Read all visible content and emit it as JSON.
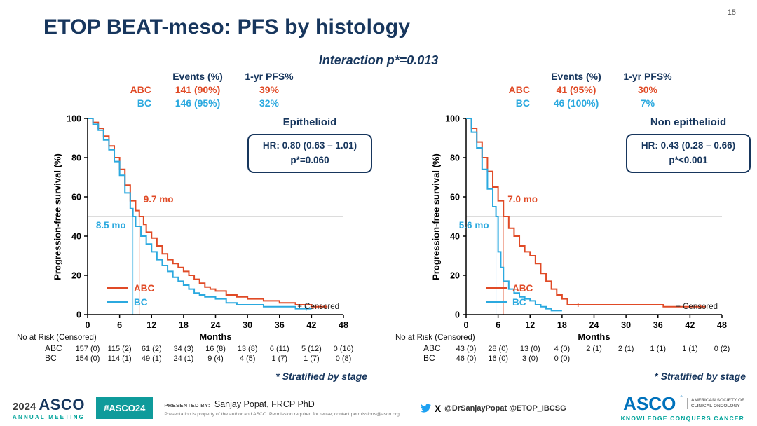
{
  "slide": {
    "title": "ETOP BEAT-meso: PFS by histology",
    "subtitle": "Interaction p*=0.013",
    "page_number": "15"
  },
  "colors": {
    "abc": "#e04a26",
    "bc": "#2ba9df",
    "navy": "#17365d",
    "teal": "#00a39a"
  },
  "charts": [
    {
      "histology_label": "Epithelioid",
      "hr_line1": "HR: 0.80 (0.63 – 1.01)",
      "hr_line2": "p*=0.060",
      "ylabel": "Progression-free survival (%)",
      "censored_note": "+ Censored",
      "stratified_note": "* Stratified by stage",
      "stats": {
        "col1": "Events (%)",
        "col2": "1-yr PFS%",
        "rows": [
          {
            "label": "ABC",
            "events": "141 (90%)",
            "pfs": "39%"
          },
          {
            "label": "BC",
            "events": "146 (95%)",
            "pfs": "32%"
          }
        ]
      },
      "chart_data": {
        "type": "line",
        "subtype": "kaplan-meier",
        "title": "Epithelioid",
        "xlabel": "Months",
        "ylabel": "Progression-free survival (%)",
        "xlim": [
          0,
          48
        ],
        "ylim": [
          0,
          100
        ],
        "xticks": [
          0,
          6,
          12,
          18,
          24,
          30,
          36,
          42,
          48
        ],
        "yticks": [
          0,
          20,
          40,
          60,
          80,
          100
        ],
        "reference_line_y": 50,
        "legend_position": "inside-bottom-left",
        "series": [
          {
            "name": "ABC",
            "color": "#e04a26",
            "median": 9.7,
            "median_label": "9.7 mo",
            "median_side": "right",
            "points": [
              [
                0,
                100
              ],
              [
                1,
                98
              ],
              [
                2,
                95
              ],
              [
                3,
                91
              ],
              [
                4,
                86
              ],
              [
                5,
                80
              ],
              [
                6,
                74
              ],
              [
                7,
                66
              ],
              [
                8,
                58
              ],
              [
                9,
                53
              ],
              [
                9.7,
                50
              ],
              [
                10.5,
                46
              ],
              [
                11,
                42
              ],
              [
                12,
                39
              ],
              [
                13,
                35
              ],
              [
                14,
                31
              ],
              [
                15,
                28
              ],
              [
                16,
                26
              ],
              [
                17,
                24
              ],
              [
                18,
                22
              ],
              [
                19,
                20
              ],
              [
                20,
                18
              ],
              [
                21,
                16
              ],
              [
                22,
                14
              ],
              [
                23,
                13
              ],
              [
                24,
                12
              ],
              [
                26,
                10
              ],
              [
                28,
                9
              ],
              [
                30,
                8
              ],
              [
                33,
                7
              ],
              [
                36,
                6
              ],
              [
                39,
                5
              ],
              [
                42,
                4
              ],
              [
                45,
                4
              ]
            ],
            "censors": [
              [
                42.8,
                4
              ],
              [
                43.7,
                4
              ],
              [
                44.6,
                4
              ]
            ]
          },
          {
            "name": "BC",
            "color": "#2ba9df",
            "median": 8.5,
            "median_label": "8.5 mo",
            "median_side": "left",
            "points": [
              [
                0,
                100
              ],
              [
                1,
                97
              ],
              [
                2,
                94
              ],
              [
                3,
                89
              ],
              [
                4,
                84
              ],
              [
                5,
                78
              ],
              [
                6,
                71
              ],
              [
                7,
                62
              ],
              [
                8,
                54
              ],
              [
                8.5,
                50
              ],
              [
                9,
                45
              ],
              [
                10,
                40
              ],
              [
                11,
                36
              ],
              [
                12,
                32
              ],
              [
                13,
                28
              ],
              [
                14,
                25
              ],
              [
                15,
                22
              ],
              [
                16,
                19
              ],
              [
                17,
                17
              ],
              [
                18,
                15
              ],
              [
                19,
                13
              ],
              [
                20,
                11
              ],
              [
                21,
                10
              ],
              [
                22,
                9
              ],
              [
                24,
                8
              ],
              [
                26,
                6
              ],
              [
                28,
                5
              ],
              [
                30,
                5
              ],
              [
                33,
                4
              ],
              [
                36,
                4
              ],
              [
                39,
                3
              ],
              [
                42,
                3
              ]
            ],
            "censors": [
              [
                41,
                3
              ]
            ]
          }
        ],
        "risk_table": {
          "header": "No at Risk (Censored)",
          "times": [
            0,
            6,
            12,
            18,
            24,
            30,
            36,
            42,
            48
          ],
          "rows": [
            {
              "label": "ABC",
              "values": [
                "157 (0)",
                "115 (2)",
                "61 (2)",
                "34 (3)",
                "16 (8)",
                "13 (8)",
                "6 (11)",
                "5 (12)",
                "0 (16)"
              ]
            },
            {
              "label": "BC",
              "values": [
                "154 (0)",
                "114 (1)",
                "49 (1)",
                "24 (1)",
                "9 (4)",
                "4 (5)",
                "1 (7)",
                "1 (7)",
                "0 (8)"
              ]
            }
          ]
        }
      }
    },
    {
      "histology_label": "Non epithelioid",
      "hr_line1": "HR: 0.43 (0.28 – 0.66)",
      "hr_line2": "p*<0.001",
      "ylabel": "Progression-free survival (%)",
      "censored_note": "+ Censored",
      "stratified_note": "* Stratified by stage",
      "stats": {
        "col1": "Events (%)",
        "col2": "1-yr PFS%",
        "rows": [
          {
            "label": "ABC",
            "events": "41 (95%)",
            "pfs": "30%"
          },
          {
            "label": "BC",
            "events": "46 (100%)",
            "pfs": "7%"
          }
        ]
      },
      "chart_data": {
        "type": "line",
        "subtype": "kaplan-meier",
        "title": "Non epithelioid",
        "xlabel": "Months",
        "ylabel": "Progression-free survival (%)",
        "xlim": [
          0,
          48
        ],
        "ylim": [
          0,
          100
        ],
        "xticks": [
          0,
          6,
          12,
          18,
          24,
          30,
          36,
          42,
          48
        ],
        "yticks": [
          0,
          20,
          40,
          60,
          80,
          100
        ],
        "reference_line_y": 50,
        "legend_position": "inside-bottom-left",
        "series": [
          {
            "name": "ABC",
            "color": "#e04a26",
            "median": 7.0,
            "median_label": "7.0 mo",
            "median_side": "right",
            "points": [
              [
                0,
                100
              ],
              [
                1,
                95
              ],
              [
                2,
                88
              ],
              [
                3,
                80
              ],
              [
                4,
                73
              ],
              [
                5,
                65
              ],
              [
                6,
                58
              ],
              [
                7,
                50
              ],
              [
                8,
                44
              ],
              [
                9,
                40
              ],
              [
                10,
                35
              ],
              [
                11,
                32
              ],
              [
                12,
                30
              ],
              [
                13,
                26
              ],
              [
                14,
                21
              ],
              [
                15,
                17
              ],
              [
                16,
                13
              ],
              [
                17,
                10
              ],
              [
                18,
                8
              ],
              [
                19,
                5
              ],
              [
                36,
                5
              ],
              [
                37,
                4
              ],
              [
                45,
                4
              ]
            ],
            "censors": [
              [
                21,
                5
              ],
              [
                44,
                4
              ]
            ]
          },
          {
            "name": "BC",
            "color": "#2ba9df",
            "median": 5.6,
            "median_label": "5.6 mo",
            "median_side": "left",
            "points": [
              [
                0,
                100
              ],
              [
                1,
                93
              ],
              [
                2,
                85
              ],
              [
                3,
                74
              ],
              [
                4,
                64
              ],
              [
                5,
                55
              ],
              [
                5.6,
                50
              ],
              [
                6,
                32
              ],
              [
                6.5,
                24
              ],
              [
                7,
                17
              ],
              [
                8,
                13
              ],
              [
                9,
                11
              ],
              [
                10,
                9
              ],
              [
                11,
                8
              ],
              [
                12,
                7
              ],
              [
                13,
                5
              ],
              [
                14,
                4
              ],
              [
                15,
                3
              ],
              [
                16,
                2
              ],
              [
                18,
                2
              ]
            ],
            "censors": []
          }
        ],
        "risk_table": {
          "header": "No at Risk (Censored)",
          "times": [
            0,
            6,
            12,
            18,
            24,
            30,
            36,
            42,
            48
          ],
          "rows": [
            {
              "label": "ABC",
              "values": [
                "43 (0)",
                "28 (0)",
                "13 (0)",
                "4 (0)",
                "2 (1)",
                "2 (1)",
                "1 (1)",
                "1 (1)",
                "0 (2)"
              ]
            },
            {
              "label": "BC",
              "values": [
                "46 (0)",
                "16 (0)",
                "3 (0)",
                "0 (0)"
              ]
            }
          ]
        }
      }
    }
  ],
  "footer": {
    "meeting_year": "2024",
    "meeting_name": "ASCO",
    "meeting_sub": "ANNUAL MEETING",
    "hashtag": "#ASCO24",
    "presented_by_label": "PRESENTED BY:",
    "presenter": "Sanjay Popat, FRCP PhD",
    "disclaimer": "Presentation is property of the author and ASCO. Permission required for reuse; contact permissions@asco.org.",
    "social_handles": "@DrSanjayPopat @ETOP_IBCSG",
    "asco_logo_text": "ASCO",
    "asco_org_line1": "AMERICAN SOCIETY OF",
    "asco_org_line2": "CLINICAL ONCOLOGY",
    "asco_tagline": "KNOWLEDGE CONQUERS CANCER"
  }
}
